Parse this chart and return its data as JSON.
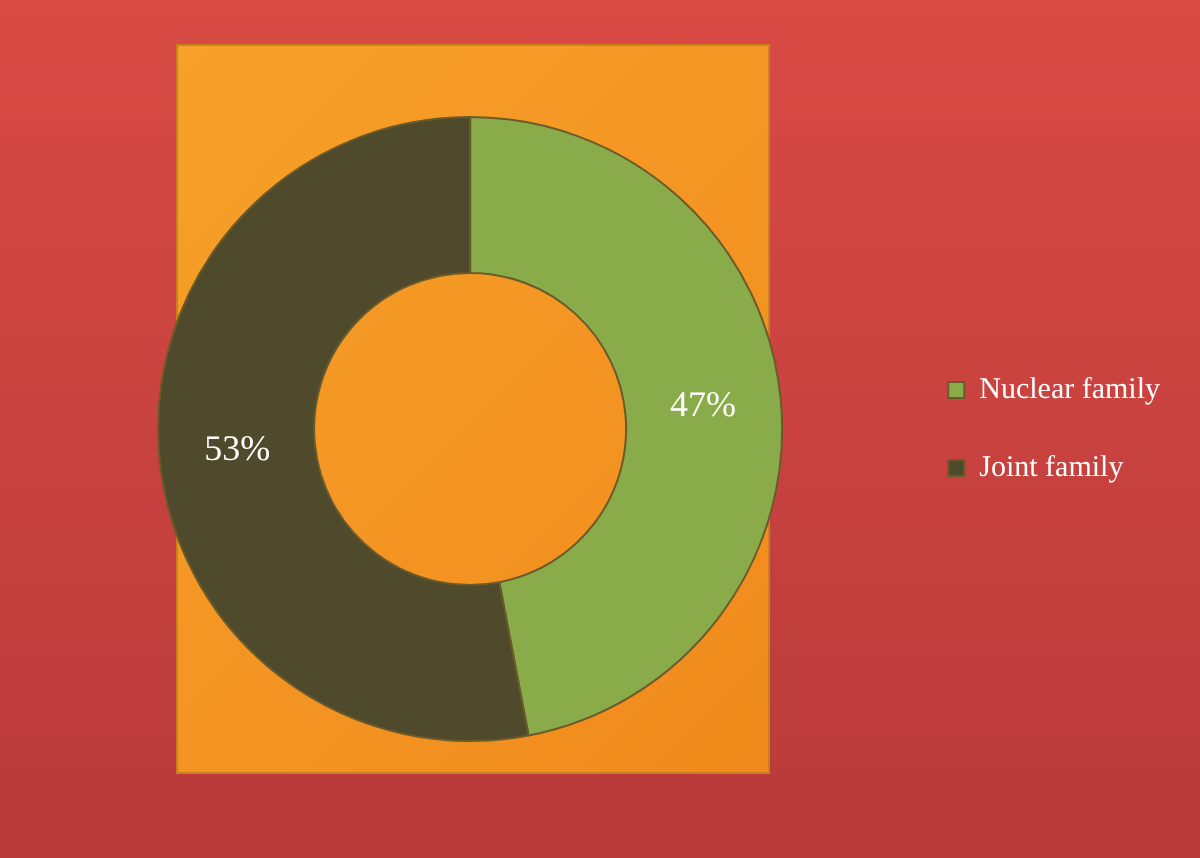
{
  "chart_data": {
    "type": "donut",
    "categories": [
      "Nuclear family",
      "Joint family"
    ],
    "values": [
      47,
      53
    ],
    "colors": [
      "#8aab4a",
      "#4f4a2c"
    ],
    "value_labels": [
      "47%",
      "53%"
    ],
    "legend": "right"
  }
}
